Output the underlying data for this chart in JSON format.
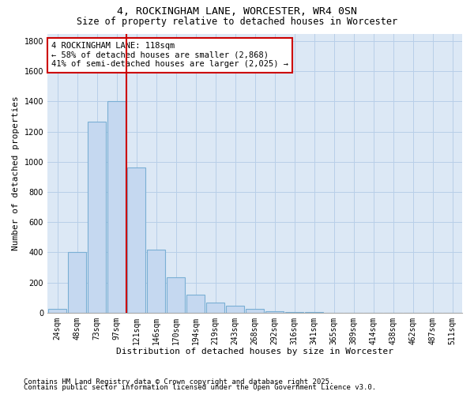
{
  "title": "4, ROCKINGHAM LANE, WORCESTER, WR4 0SN",
  "subtitle": "Size of property relative to detached houses in Worcester",
  "xlabel": "Distribution of detached houses by size in Worcester",
  "ylabel": "Number of detached properties",
  "categories": [
    "24sqm",
    "48sqm",
    "73sqm",
    "97sqm",
    "121sqm",
    "146sqm",
    "170sqm",
    "194sqm",
    "219sqm",
    "243sqm",
    "268sqm",
    "292sqm",
    "316sqm",
    "341sqm",
    "365sqm",
    "389sqm",
    "414sqm",
    "438sqm",
    "462sqm",
    "487sqm",
    "511sqm"
  ],
  "values": [
    25,
    400,
    1265,
    1400,
    960,
    420,
    235,
    120,
    65,
    45,
    25,
    10,
    5,
    2,
    1,
    0,
    0,
    0,
    0,
    0,
    0
  ],
  "bar_color": "#c5d8f0",
  "bar_edge_color": "#7aafd4",
  "plot_bg_color": "#dce8f5",
  "background_color": "#ffffff",
  "grid_color": "#b8cfe8",
  "vline_color": "#cc0000",
  "annotation_text": "4 ROCKINGHAM LANE: 118sqm\n← 58% of detached houses are smaller (2,868)\n41% of semi-detached houses are larger (2,025) →",
  "annotation_box_edge_color": "#cc0000",
  "ylim": [
    0,
    1850
  ],
  "yticks": [
    0,
    200,
    400,
    600,
    800,
    1000,
    1200,
    1400,
    1600,
    1800
  ],
  "footer_line1": "Contains HM Land Registry data © Crown copyright and database right 2025.",
  "footer_line2": "Contains public sector information licensed under the Open Government Licence v3.0.",
  "title_fontsize": 9.5,
  "subtitle_fontsize": 8.5,
  "axis_label_fontsize": 8,
  "tick_fontsize": 7,
  "annotation_fontsize": 7.5,
  "footer_fontsize": 6.5
}
